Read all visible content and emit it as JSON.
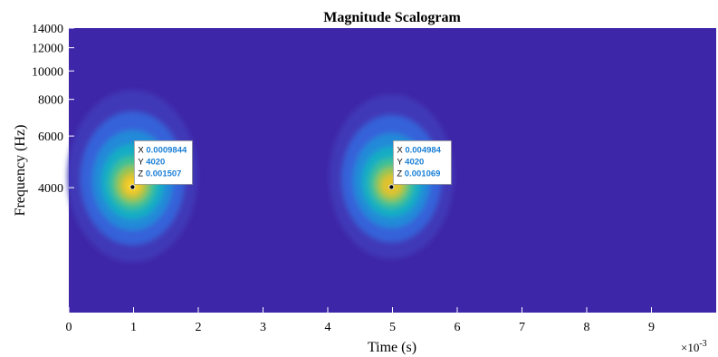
{
  "chart_data": {
    "type": "heatmap",
    "title": "Magnitude Scalogram",
    "xlabel": "Time (s)",
    "ylabel": "Frequency (Hz)",
    "x_exponent_label": "×10",
    "x_exponent_power": "-3",
    "xlim": [
      0,
      0.01
    ],
    "ylim": [
      1500,
      14000
    ],
    "y_scale": "log",
    "x_ticks": [
      0,
      0.001,
      0.002,
      0.003,
      0.004,
      0.005,
      0.006,
      0.007,
      0.008,
      0.009
    ],
    "x_tick_labels": [
      "0",
      "1",
      "2",
      "3",
      "4",
      "5",
      "6",
      "7",
      "8",
      "9"
    ],
    "y_ticks": [
      4000,
      6000,
      8000,
      10000,
      12000,
      14000
    ],
    "y_tick_labels": [
      "4000",
      "6000",
      "8000",
      "10000",
      "12000",
      "14000"
    ],
    "colormap": "parula",
    "background_color": "#3e26a8",
    "peaks": [
      {
        "x": 0.0009844,
        "y": 4020,
        "z": 0.001507
      },
      {
        "x": 0.004984,
        "y": 4020,
        "z": 0.001069
      }
    ],
    "datatips": [
      {
        "x_label": "X",
        "x_value": "0.0009844",
        "y_label": "Y",
        "y_value": "4020",
        "z_label": "Z",
        "z_value": "0.001507"
      },
      {
        "x_label": "X",
        "x_value": "0.004984",
        "y_label": "Y",
        "y_value": "4020",
        "z_label": "Z",
        "z_value": "0.001069"
      }
    ],
    "datatip_value_color": "#1a7fd6"
  }
}
